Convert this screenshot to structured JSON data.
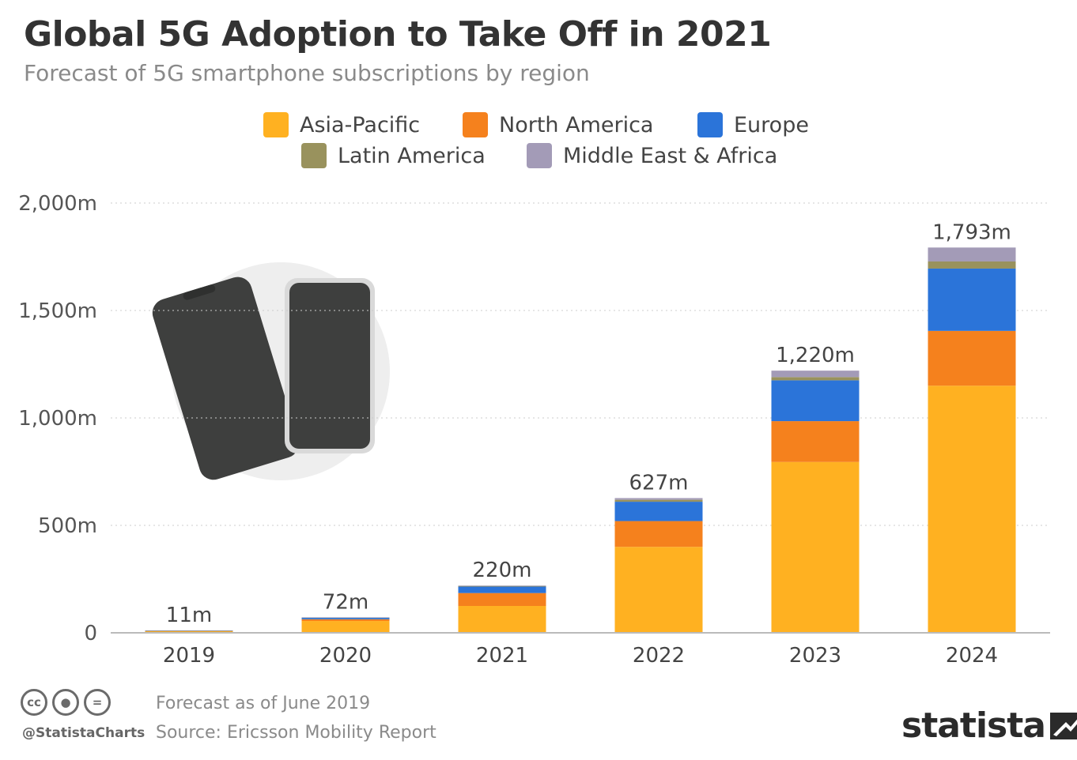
{
  "title": "Global 5G Adoption to Take Off in 2021",
  "subtitle": "Forecast of 5G smartphone subscriptions by region",
  "legend": [
    {
      "label": "Asia-Pacific",
      "color": "#FFB121"
    },
    {
      "label": "North America",
      "color": "#F5811D"
    },
    {
      "label": "Europe",
      "color": "#2B74D9"
    },
    {
      "label": "Latin America",
      "color": "#99925D"
    },
    {
      "label": "Middle East & Africa",
      "color": "#A39BB7"
    }
  ],
  "chart_data": {
    "type": "bar",
    "stacked": true,
    "categories": [
      "2019",
      "2020",
      "2021",
      "2022",
      "2023",
      "2024"
    ],
    "series": [
      {
        "name": "Asia-Pacific",
        "color": "#FFB121",
        "values": [
          8,
          55,
          125,
          400,
          795,
          1150
        ]
      },
      {
        "name": "North America",
        "color": "#F5811D",
        "values": [
          2,
          8,
          60,
          120,
          190,
          255
        ]
      },
      {
        "name": "Europe",
        "color": "#2B74D9",
        "values": [
          1,
          7,
          30,
          90,
          190,
          290
        ]
      },
      {
        "name": "Latin America",
        "color": "#99925D",
        "values": [
          0,
          1,
          3,
          9,
          15,
          33
        ]
      },
      {
        "name": "Middle East & Africa",
        "color": "#A39BB7",
        "values": [
          0,
          1,
          2,
          8,
          30,
          65
        ]
      }
    ],
    "totals": [
      "11m",
      "72m",
      "220m",
      "627m",
      "1,220m",
      "1,793m"
    ],
    "y_ticks": [
      0,
      500,
      1000,
      1500,
      2000
    ],
    "y_tick_labels": [
      "0",
      "500m",
      "1,000m",
      "1,500m",
      "2,000m"
    ],
    "ylim": [
      0,
      2000
    ],
    "grid": true
  },
  "footer": {
    "handle": "@StatistaCharts",
    "note": "Forecast as of June 2019",
    "source": "Source: Ericsson Mobility Report",
    "brand": "statista"
  }
}
